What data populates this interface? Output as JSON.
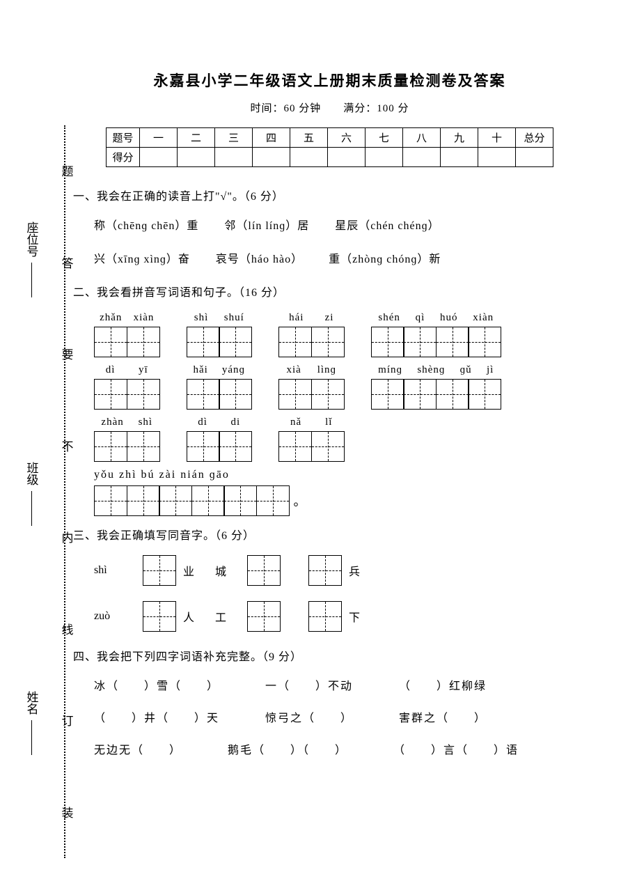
{
  "title": "永嘉县小学二年级语文上册期末质量检测卷及答案",
  "subtitle_time": "时间：60 分钟",
  "subtitle_score": "满分：100 分",
  "score_table": {
    "row1_label": "题号",
    "row2_label": "得分",
    "cols": [
      "一",
      "二",
      "三",
      "四",
      "五",
      "六",
      "七",
      "八",
      "九",
      "十",
      "总分"
    ]
  },
  "section1": {
    "heading": "一、我会在正确的读音上打\"√\"。（6 分）",
    "line1_a": "称（chēnɡ chēn）重",
    "line1_b": "邻（lín línɡ）居",
    "line1_c": "星辰（chén chénɡ）",
    "line2_a": "兴（xīnɡ xìnɡ）奋",
    "line2_b": "哀号（háo hào）",
    "line2_c": "重（zhònɡ chónɡ）新"
  },
  "section2": {
    "heading": "二、我会看拼音写词语和句子。（16 分）",
    "row1": [
      {
        "py": [
          "zhǎn",
          "xiàn"
        ],
        "cells": 2
      },
      {
        "py": [
          "shì",
          "shuí"
        ],
        "cells": 2
      },
      {
        "py": [
          "hái",
          "zi"
        ],
        "cells": 2
      },
      {
        "py": [
          "shén",
          "qì",
          "huó",
          "xiàn"
        ],
        "cells": 4
      }
    ],
    "row2": [
      {
        "py": [
          "dì",
          "yī"
        ],
        "cells": 2
      },
      {
        "py": [
          "hǎi",
          "yánɡ"
        ],
        "cells": 2
      },
      {
        "py": [
          "xià",
          "lìnɡ"
        ],
        "cells": 2
      },
      {
        "py": [
          "mínɡ",
          "shènɡ",
          "ɡǔ",
          "jì"
        ],
        "cells": 4
      }
    ],
    "row3": [
      {
        "py": [
          "zhàn",
          "shì"
        ],
        "cells": 2
      },
      {
        "py": [
          "dì",
          "di"
        ],
        "cells": 2
      },
      {
        "py": [
          "nǎ",
          "lǐ"
        ],
        "cells": 2
      }
    ],
    "sentence_py": "yǒu zhì bú zài nián ɡāo",
    "sentence_cells": 6,
    "period": "。"
  },
  "section3": {
    "heading": "三、我会正确填写同音字。（6 分）",
    "rows": [
      {
        "py": "shì",
        "items": [
          {
            "after": "业"
          },
          {
            "before": "城",
            "after": ""
          },
          {
            "after": "兵"
          }
        ]
      },
      {
        "py": "zuò",
        "items": [
          {
            "after": "人"
          },
          {
            "before": "工",
            "after": ""
          },
          {
            "after": "下"
          }
        ]
      }
    ]
  },
  "section4": {
    "heading": "四、我会把下列四字词语补充完整。（9 分）",
    "line1": [
      "冰（　　）雪（　　）",
      "一（　　）不动",
      "（　　）红柳绿"
    ],
    "line2": [
      "（　　）井（　　）天",
      "惊弓之（　　）",
      "害群之（　　）"
    ],
    "line3": [
      "无边无（　　）",
      "鹅毛（　　）（　　）",
      "（　　）言（　　）语"
    ]
  },
  "binding_labels": [
    "题",
    "答",
    "要",
    "不",
    "内",
    "线",
    "订",
    "装"
  ],
  "left_labels": [
    "座位号",
    "班级",
    "姓名"
  ],
  "colors": {
    "text": "#000000",
    "background": "#ffffff",
    "border": "#000000"
  }
}
